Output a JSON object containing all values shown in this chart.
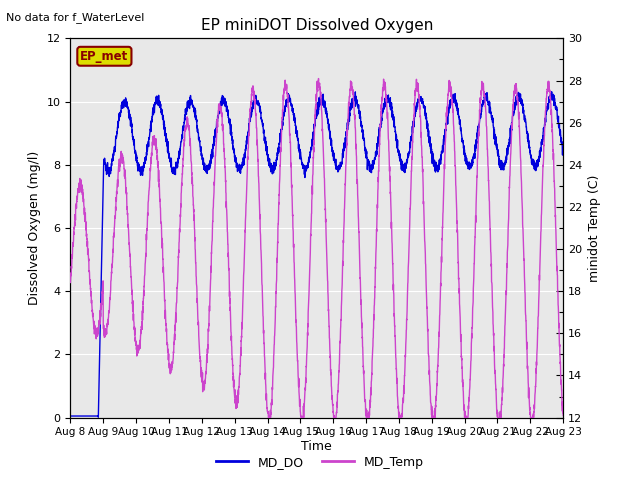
{
  "title": "EP miniDOT Dissolved Oxygen",
  "top_left_text": "No data for f_WaterLevel",
  "legend_box_text": "EP_met",
  "xlabel": "Time",
  "ylabel_left": "Dissolved Oxygen (mg/l)",
  "ylabel_right": "minidot Temp (C)",
  "ylim_left": [
    0,
    12
  ],
  "ylim_right": [
    12,
    30
  ],
  "xtick_labels": [
    "Aug 8",
    "Aug 9",
    "Aug 10",
    "Aug 11",
    "Aug 12",
    "Aug 13",
    "Aug 14",
    "Aug 15",
    "Aug 16",
    "Aug 17",
    "Aug 18",
    "Aug 19",
    "Aug 20",
    "Aug 21",
    "Aug 22",
    "Aug 23"
  ],
  "yticks_left": [
    0,
    2,
    4,
    6,
    8,
    10,
    12
  ],
  "yticks_right": [
    12,
    14,
    16,
    18,
    20,
    22,
    24,
    26,
    28,
    30
  ],
  "yticks_right_minor": [
    13,
    15,
    17,
    19,
    21,
    23,
    25,
    27,
    29
  ],
  "background_color": "#e8e8e8",
  "line_do_color": "#0000dd",
  "line_temp_color": "#cc44cc",
  "legend_box_bg": "#dddd00",
  "legend_box_border": "#880000",
  "grid_color": "#ffffff",
  "figure_bg": "#ffffff"
}
